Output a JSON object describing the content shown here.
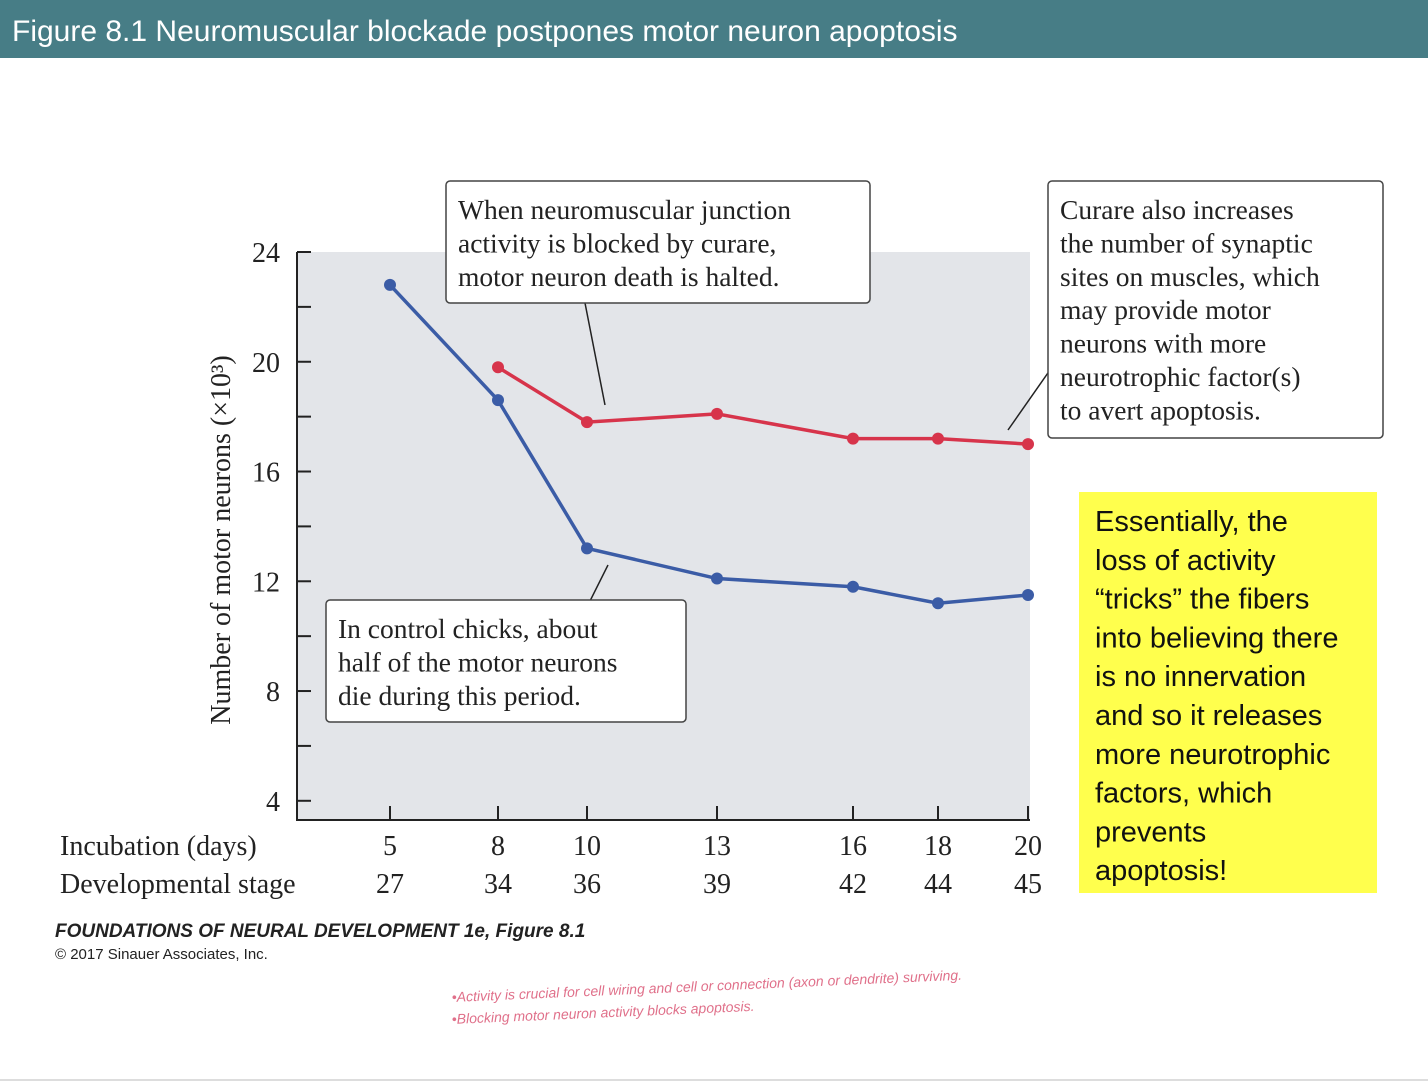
{
  "header": {
    "title": "Figure 8.1  Neuromuscular blockade postpones motor neuron apoptosis"
  },
  "chart_data": {
    "type": "line",
    "y_label": "Number of motor neurons (×10³)",
    "x_label": "Incubation (days)",
    "x2_label": "Developmental stage",
    "categories": [
      "5",
      "8",
      "10",
      "13",
      "16",
      "18",
      "20"
    ],
    "stages": [
      "27",
      "34",
      "36",
      "39",
      "42",
      "44",
      "45"
    ],
    "ylim": [
      3.3,
      24
    ],
    "yticks": [
      4,
      8,
      12,
      16,
      20,
      24
    ],
    "yminorticks": [
      6,
      10,
      14,
      18,
      22
    ],
    "series": [
      {
        "name": "Control",
        "color": "#3b5ca6",
        "values": [
          22.8,
          18.6,
          13.2,
          12.1,
          11.8,
          11.2,
          11.5
        ]
      },
      {
        "name": "Curare",
        "color": "#d7344b",
        "values": [
          null,
          19.8,
          17.8,
          18.1,
          17.2,
          17.2,
          17.0
        ]
      }
    ],
    "annotations": [
      {
        "lines": [
          "When neuromuscular junction",
          "activity is blocked by curare,",
          "motor neuron death is halted."
        ]
      },
      {
        "lines": [
          "In control chicks, about",
          "half of the motor neurons",
          "die during this period."
        ]
      },
      {
        "lines": [
          "Curare also increases",
          "the number of synaptic",
          "sites on muscles, which",
          "may provide motor",
          "neurons with more",
          "neurotrophic factor(s)",
          "to avert apoptosis."
        ]
      }
    ]
  },
  "note": {
    "lines": [
      "Essentially, the",
      "loss of activity",
      "“tricks” the fibers",
      "into believing there",
      "is no innervation",
      "and so it releases",
      "more neurotrophic",
      "factors, which",
      "prevents",
      "apoptosis!"
    ]
  },
  "credit": {
    "book": "FOUNDATIONS OF NEURAL DEVELOPMENT 1e, Figure 8.1",
    "copyright": "© 2017 Sinauer Associates, Inc."
  },
  "handwritten": [
    "•Activity is crucial for cell wiring and cell or connection (axon or dendrite) surviving.",
    "•Blocking motor neuron activity blocks apoptosis."
  ]
}
